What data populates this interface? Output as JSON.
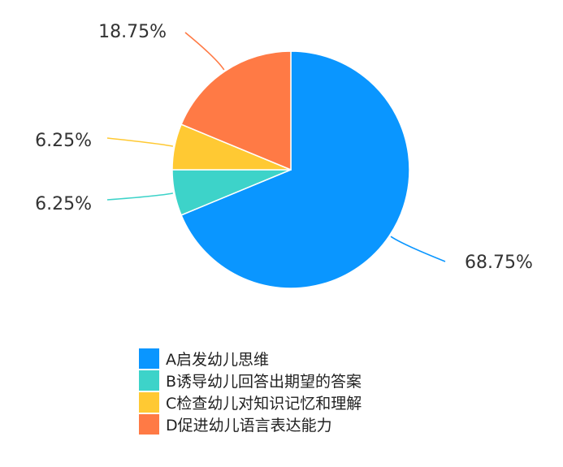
{
  "chart_data": {
    "type": "pie",
    "categories": [
      "A启发幼儿思维",
      "B诱导幼儿回答出期望的答案",
      "C检查幼儿对知识记忆和理解",
      "D促进幼儿语言表达能力"
    ],
    "values": [
      68.75,
      6.25,
      6.25,
      18.75
    ],
    "data_labels": [
      "68.75%",
      "6.25%",
      "6.25%",
      "18.75%"
    ],
    "colors": [
      "#0A96FF",
      "#3DD3C9",
      "#FFC933",
      "#FF7A45"
    ],
    "legend_position": "bottom",
    "start_angle": "top",
    "direction": "clockwise"
  }
}
